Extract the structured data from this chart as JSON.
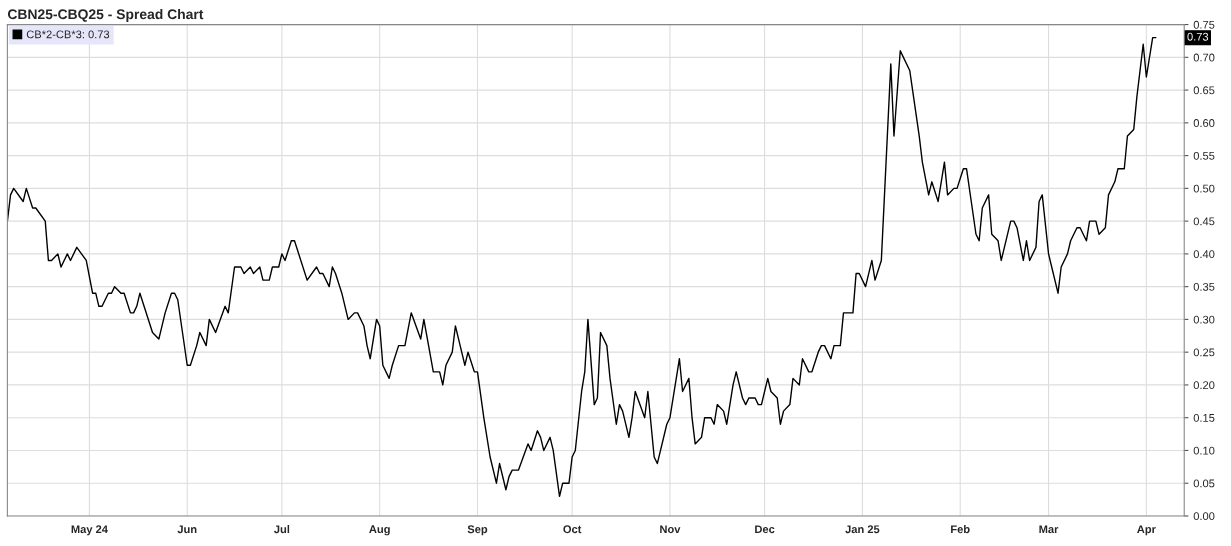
{
  "chart_data": {
    "type": "line",
    "title": "CBN25-CBQ25 - Spread Chart",
    "x": [
      "2024-04-05",
      "2024-04-06",
      "2024-04-07",
      "2024-04-10",
      "2024-04-11",
      "2024-04-13",
      "2024-04-14",
      "2024-04-17",
      "2024-04-18",
      "2024-04-19",
      "2024-04-21",
      "2024-04-22",
      "2024-04-24",
      "2024-04-25",
      "2024-04-27",
      "2024-04-30",
      "2024-05-02",
      "2024-05-03",
      "2024-05-04",
      "2024-05-05",
      "2024-05-07",
      "2024-05-08",
      "2024-05-09",
      "2024-05-11",
      "2024-05-12",
      "2024-05-14",
      "2024-05-15",
      "2024-05-16",
      "2024-05-17",
      "2024-05-21",
      "2024-05-23",
      "2024-05-25",
      "2024-05-27",
      "2024-05-28",
      "2024-05-29",
      "2024-06-01",
      "2024-06-02",
      "2024-06-04",
      "2024-06-05",
      "2024-06-07",
      "2024-06-08",
      "2024-06-10",
      "2024-06-13",
      "2024-06-14",
      "2024-06-16",
      "2024-06-18",
      "2024-06-19",
      "2024-06-21",
      "2024-06-22",
      "2024-06-24",
      "2024-06-25",
      "2024-06-27",
      "2024-06-28",
      "2024-06-30",
      "2024-07-01",
      "2024-07-02",
      "2024-07-04",
      "2024-07-05",
      "2024-07-09",
      "2024-07-12",
      "2024-07-13",
      "2024-07-14",
      "2024-07-16",
      "2024-07-17",
      "2024-07-18",
      "2024-07-20",
      "2024-07-22",
      "2024-07-24",
      "2024-07-25",
      "2024-07-27",
      "2024-07-28",
      "2024-07-29",
      "2024-07-31",
      "2024-08-01",
      "2024-08-02",
      "2024-08-04",
      "2024-08-05",
      "2024-08-07",
      "2024-08-09",
      "2024-08-11",
      "2024-08-14",
      "2024-08-15",
      "2024-08-18",
      "2024-08-20",
      "2024-08-21",
      "2024-08-22",
      "2024-08-24",
      "2024-08-25",
      "2024-08-27",
      "2024-08-28",
      "2024-08-29",
      "2024-08-31",
      "2024-09-01",
      "2024-09-03",
      "2024-09-05",
      "2024-09-07",
      "2024-09-08",
      "2024-09-10",
      "2024-09-11",
      "2024-09-12",
      "2024-09-14",
      "2024-09-17",
      "2024-09-18",
      "2024-09-20",
      "2024-09-21",
      "2024-09-22",
      "2024-09-24",
      "2024-09-25",
      "2024-09-27",
      "2024-09-28",
      "2024-09-30",
      "2024-10-01",
      "2024-10-02",
      "2024-10-04",
      "2024-10-05",
      "2024-10-06",
      "2024-10-08",
      "2024-10-09",
      "2024-10-10",
      "2024-10-12",
      "2024-10-13",
      "2024-10-15",
      "2024-10-16",
      "2024-10-17",
      "2024-10-19",
      "2024-10-20",
      "2024-10-21",
      "2024-10-24",
      "2024-10-25",
      "2024-10-27",
      "2024-10-28",
      "2024-10-31",
      "2024-11-01",
      "2024-11-03",
      "2024-11-04",
      "2024-11-05",
      "2024-11-07",
      "2024-11-08",
      "2024-11-09",
      "2024-11-11",
      "2024-11-12",
      "2024-11-14",
      "2024-11-15",
      "2024-11-16",
      "2024-11-18",
      "2024-11-19",
      "2024-11-21",
      "2024-11-22",
      "2024-11-24",
      "2024-11-25",
      "2024-11-26",
      "2024-11-28",
      "2024-11-29",
      "2024-11-30",
      "2024-12-02",
      "2024-12-03",
      "2024-12-05",
      "2024-12-06",
      "2024-12-07",
      "2024-12-09",
      "2024-12-10",
      "2024-12-12",
      "2024-12-13",
      "2024-12-15",
      "2024-12-16",
      "2024-12-18",
      "2024-12-19",
      "2024-12-20",
      "2024-12-22",
      "2024-12-23",
      "2024-12-25",
      "2024-12-26",
      "2024-12-29",
      "2024-12-30",
      "2024-12-31",
      "2025-01-02",
      "2025-01-04",
      "2025-01-05",
      "2025-01-07",
      "2025-01-10",
      "2025-01-11",
      "2025-01-13",
      "2025-01-14",
      "2025-01-16",
      "2025-01-19",
      "2025-01-20",
      "2025-01-22",
      "2025-01-23",
      "2025-01-25",
      "2025-01-27",
      "2025-01-28",
      "2025-01-30",
      "2025-01-31",
      "2025-02-02",
      "2025-02-03",
      "2025-02-06",
      "2025-02-07",
      "2025-02-08",
      "2025-02-10",
      "2025-02-11",
      "2025-02-13",
      "2025-02-14",
      "2025-02-15",
      "2025-02-17",
      "2025-02-18",
      "2025-02-19",
      "2025-02-21",
      "2025-02-22",
      "2025-02-23",
      "2025-02-25",
      "2025-02-26",
      "2025-02-27",
      "2025-03-01",
      "2025-03-02",
      "2025-03-04",
      "2025-03-05",
      "2025-03-07",
      "2025-03-08",
      "2025-03-10",
      "2025-03-11",
      "2025-03-13",
      "2025-03-14",
      "2025-03-16",
      "2025-03-17",
      "2025-03-19",
      "2025-03-20",
      "2025-03-22",
      "2025-03-23",
      "2025-03-25",
      "2025-03-26",
      "2025-03-28",
      "2025-03-29",
      "2025-03-31",
      "2025-04-01",
      "2025-04-03",
      "2025-04-04"
    ],
    "series": [
      {
        "name": "CB*2-CB*3: 0.73",
        "color": "#000000",
        "values": [
          0.45,
          0.49,
          0.5,
          0.48,
          0.5,
          0.47,
          0.47,
          0.45,
          0.39,
          0.39,
          0.4,
          0.38,
          0.4,
          0.39,
          0.41,
          0.39,
          0.34,
          0.34,
          0.32,
          0.32,
          0.34,
          0.34,
          0.35,
          0.34,
          0.34,
          0.31,
          0.31,
          0.32,
          0.34,
          0.28,
          0.27,
          0.31,
          0.34,
          0.34,
          0.33,
          0.23,
          0.23,
          0.26,
          0.28,
          0.26,
          0.3,
          0.28,
          0.32,
          0.31,
          0.38,
          0.38,
          0.37,
          0.38,
          0.37,
          0.38,
          0.36,
          0.36,
          0.38,
          0.38,
          0.4,
          0.39,
          0.42,
          0.42,
          0.36,
          0.38,
          0.37,
          0.37,
          0.35,
          0.38,
          0.37,
          0.34,
          0.3,
          0.31,
          0.31,
          0.29,
          0.26,
          0.24,
          0.3,
          0.29,
          0.23,
          0.21,
          0.23,
          0.26,
          0.26,
          0.31,
          0.27,
          0.3,
          0.22,
          0.22,
          0.2,
          0.23,
          0.25,
          0.29,
          0.25,
          0.23,
          0.25,
          0.22,
          0.22,
          0.15,
          0.09,
          0.05,
          0.08,
          0.04,
          0.06,
          0.07,
          0.07,
          0.11,
          0.1,
          0.13,
          0.12,
          0.1,
          0.12,
          0.1,
          0.03,
          0.05,
          0.05,
          0.09,
          0.1,
          0.19,
          0.22,
          0.3,
          0.17,
          0.18,
          0.28,
          0.26,
          0.21,
          0.14,
          0.17,
          0.16,
          0.12,
          0.15,
          0.19,
          0.15,
          0.19,
          0.09,
          0.08,
          0.14,
          0.15,
          0.21,
          0.24,
          0.19,
          0.21,
          0.15,
          0.11,
          0.12,
          0.15,
          0.15,
          0.14,
          0.17,
          0.16,
          0.14,
          0.2,
          0.22,
          0.18,
          0.17,
          0.18,
          0.18,
          0.17,
          0.17,
          0.21,
          0.19,
          0.18,
          0.14,
          0.16,
          0.17,
          0.21,
          0.2,
          0.24,
          0.22,
          0.22,
          0.25,
          0.26,
          0.26,
          0.24,
          0.26,
          0.26,
          0.31,
          0.31,
          0.37,
          0.37,
          0.35,
          0.39,
          0.36,
          0.39,
          0.69,
          0.58,
          0.71,
          0.7,
          0.68,
          0.58,
          0.54,
          0.49,
          0.51,
          0.48,
          0.54,
          0.49,
          0.5,
          0.5,
          0.53,
          0.53,
          0.43,
          0.42,
          0.47,
          0.49,
          0.43,
          0.42,
          0.39,
          0.41,
          0.45,
          0.45,
          0.44,
          0.39,
          0.42,
          0.39,
          0.41,
          0.48,
          0.49,
          0.4,
          0.38,
          0.34,
          0.38,
          0.4,
          0.42,
          0.44,
          0.44,
          0.42,
          0.45,
          0.45,
          0.43,
          0.44,
          0.49,
          0.51,
          0.53,
          0.53,
          0.58,
          0.59,
          0.64,
          0.72,
          0.67,
          0.73,
          0.73
        ]
      }
    ],
    "xlim": [
      "2024-04-05",
      "2025-04-13"
    ],
    "xticks": [
      {
        "value": "2024-05-01",
        "label": "May 24"
      },
      {
        "value": "2024-06-01",
        "label": "Jun"
      },
      {
        "value": "2024-07-01",
        "label": "Jul"
      },
      {
        "value": "2024-08-01",
        "label": "Aug"
      },
      {
        "value": "2024-09-01",
        "label": "Sep"
      },
      {
        "value": "2024-10-01",
        "label": "Oct"
      },
      {
        "value": "2024-11-01",
        "label": "Nov"
      },
      {
        "value": "2024-12-01",
        "label": "Dec"
      },
      {
        "value": "2025-01-01",
        "label": "Jan 25"
      },
      {
        "value": "2025-02-01",
        "label": "Feb"
      },
      {
        "value": "2025-03-01",
        "label": "Mar"
      },
      {
        "value": "2025-04-01",
        "label": "Apr"
      }
    ],
    "ylim": [
      0,
      0.75
    ],
    "yticks": [
      {
        "value": 0,
        "label": "0.00"
      },
      {
        "value": 0.05,
        "label": "0.05"
      },
      {
        "value": 0.1,
        "label": "0.10"
      },
      {
        "value": 0.15,
        "label": "0.15"
      },
      {
        "value": 0.2,
        "label": "0.20"
      },
      {
        "value": 0.25,
        "label": "0.25"
      },
      {
        "value": 0.3,
        "label": "0.30"
      },
      {
        "value": 0.35,
        "label": "0.35"
      },
      {
        "value": 0.4,
        "label": "0.40"
      },
      {
        "value": 0.45,
        "label": "0.45"
      },
      {
        "value": 0.5,
        "label": "0.50"
      },
      {
        "value": 0.55,
        "label": "0.55"
      },
      {
        "value": 0.6,
        "label": "0.60"
      },
      {
        "value": 0.65,
        "label": "0.65"
      },
      {
        "value": 0.7,
        "label": "0.70"
      },
      {
        "value": 0.75,
        "label": "0.75"
      }
    ],
    "annotations": [
      {
        "text": "0.73",
        "y": 0.73
      }
    ],
    "grid": true,
    "legend": "top left",
    "marker": "none",
    "line_style": "solid"
  }
}
